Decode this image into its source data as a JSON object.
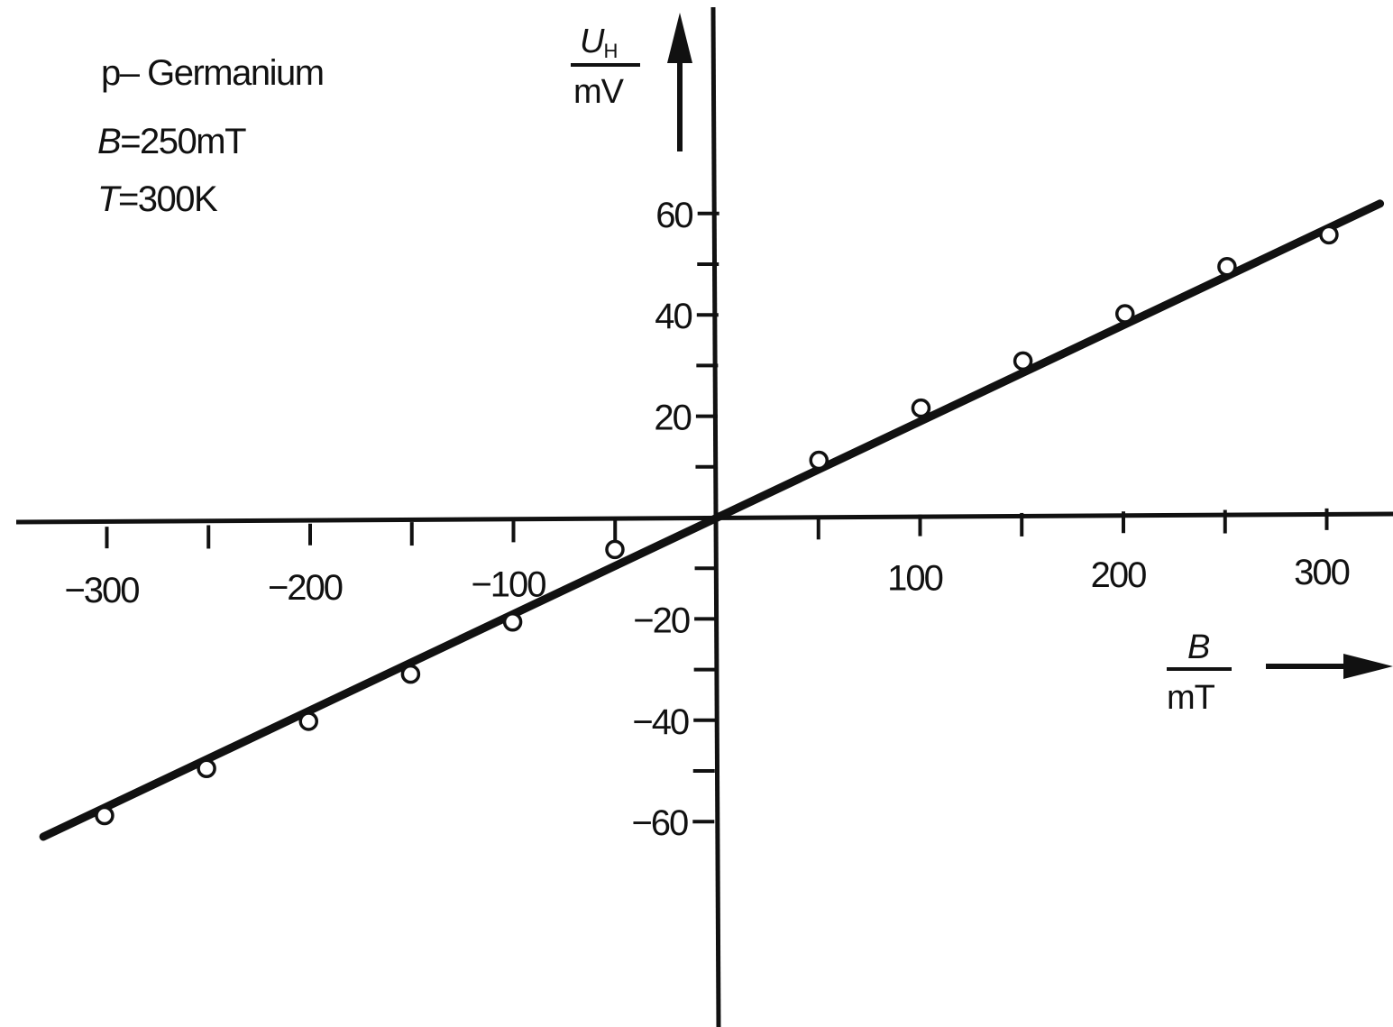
{
  "chart_data": {
    "type": "scatter",
    "xlim": [
      -340,
      330
    ],
    "ylim": [
      -100,
      96
    ],
    "x_axis": {
      "symbol": "B",
      "unit": "mT",
      "ticks_major": [
        -300,
        -200,
        -100,
        100,
        200,
        300
      ],
      "tick_labels": [
        "−300",
        "−200",
        "−100",
        "100",
        "200",
        "300"
      ],
      "ticks_minor": [
        -250,
        -150,
        -50,
        50,
        150,
        250
      ]
    },
    "y_axis": {
      "symbol": "U",
      "subscript": "H",
      "unit": "mV",
      "ticks_major": [
        60,
        40,
        20,
        -20,
        -40,
        -60
      ],
      "tick_labels": [
        "60",
        "40",
        "20",
        "−20",
        "−40",
        "−60"
      ],
      "ticks_minor": [
        50,
        30,
        10,
        -10,
        -30,
        -50
      ]
    },
    "annotations": {
      "material": "p– Germanium",
      "field_symbol": "B",
      "field_value": "=250mT",
      "temp_symbol": "T",
      "temp_value": "=300K"
    },
    "series": [
      {
        "kind": "points",
        "marker": "open-circle",
        "x": [
          -300,
          -250,
          -200,
          -150,
          -100,
          -50,
          50,
          100,
          150,
          200,
          250,
          300
        ],
        "y": [
          -57,
          -48,
          -39,
          -30,
          -20,
          -6,
          11,
          21,
          30,
          39,
          48,
          54
        ]
      },
      {
        "kind": "line",
        "x": [
          -330,
          325
        ],
        "y": [
          -61,
          60
        ]
      }
    ],
    "grid": false
  }
}
